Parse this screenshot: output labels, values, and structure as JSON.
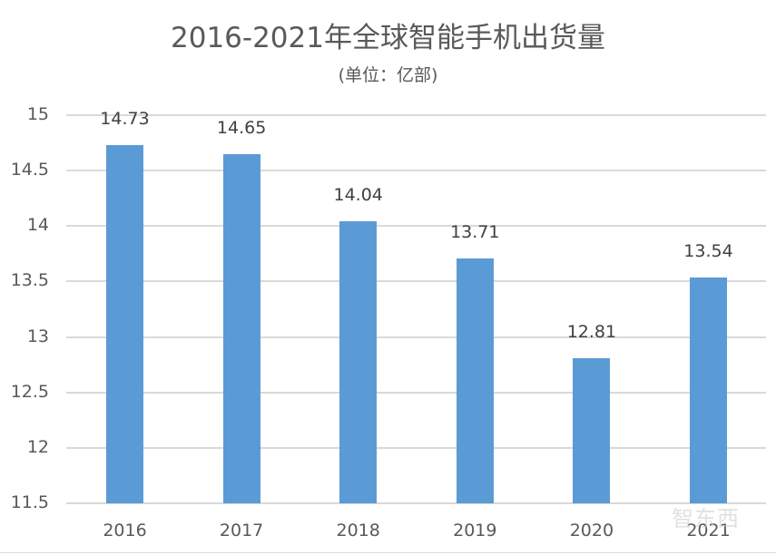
{
  "header": {
    "title": "2016-2021年全球智能手机出货量",
    "subtitle": "(单位：亿部)"
  },
  "watermark": "智东西",
  "colors": {
    "bar": "#5b9bd5",
    "grid": "#d9d9d9",
    "text": "#595959"
  },
  "y_ticks": [
    "15",
    "14.5",
    "14",
    "13.5",
    "13",
    "12.5",
    "12",
    "11.5"
  ],
  "chart_data": {
    "type": "bar",
    "title": "2016-2021年全球智能手机出货量",
    "subtitle": "(单位：亿部)",
    "categories": [
      "2016",
      "2017",
      "2018",
      "2019",
      "2020",
      "2021"
    ],
    "values": [
      14.73,
      14.65,
      14.04,
      13.71,
      12.81,
      13.54
    ],
    "data_labels": [
      "14.73",
      "14.65",
      "14.04",
      "13.71",
      "12.81",
      "13.54"
    ],
    "xlabel": "",
    "ylabel": "",
    "ylim": [
      11.5,
      15
    ],
    "yticks": [
      11.5,
      12,
      12.5,
      13,
      13.5,
      14,
      14.5,
      15
    ],
    "grid": true,
    "legend": null
  }
}
